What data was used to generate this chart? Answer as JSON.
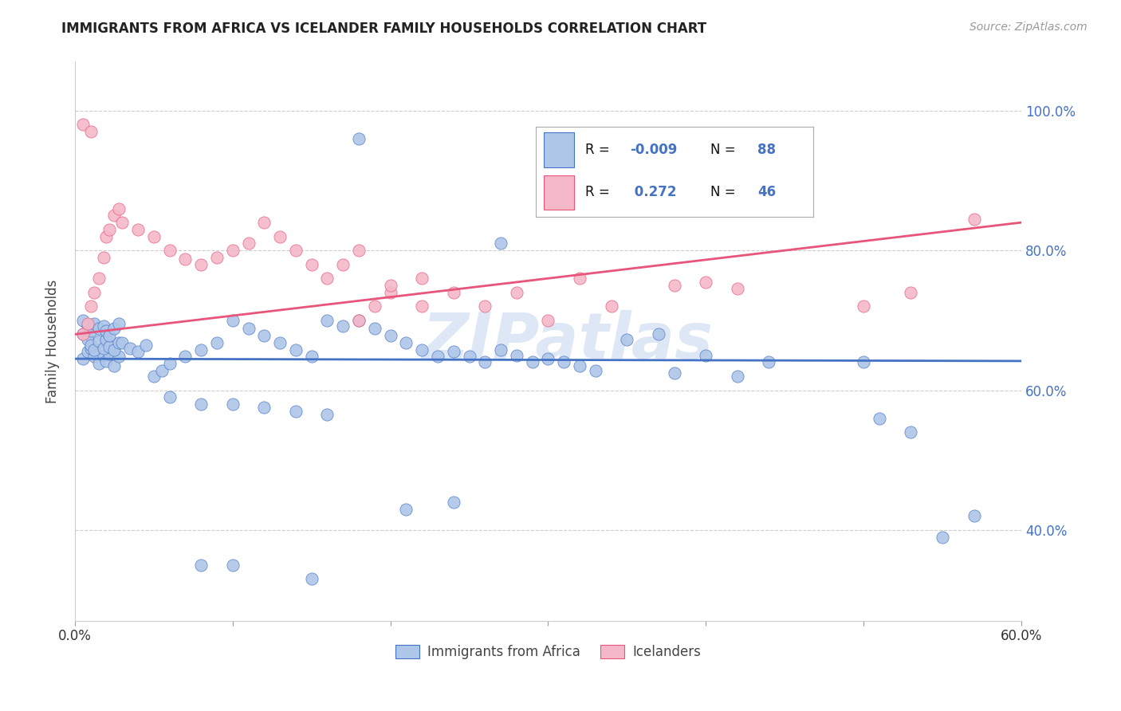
{
  "title": "IMMIGRANTS FROM AFRICA VS ICELANDER FAMILY HOUSEHOLDS CORRELATION CHART",
  "source": "Source: ZipAtlas.com",
  "ylabel": "Family Households",
  "legend_labels": [
    "Immigrants from Africa",
    "Icelanders"
  ],
  "R_africa": -0.009,
  "N_africa": 88,
  "R_iceland": 0.272,
  "N_iceland": 46,
  "color_africa": "#aec6e8",
  "color_iceland": "#f4b8c8",
  "line_color_africa": "#4472c4",
  "line_color_iceland": "#e8547a",
  "watermark": "ZIPatlas",
  "watermark_color": "#c8d8f0",
  "xmin": 0.0,
  "xmax": 0.6,
  "ymin": 0.27,
  "ymax": 1.07,
  "ytick_vals": [
    0.4,
    0.6,
    0.8,
    1.0
  ],
  "ytick_labels": [
    "40.0%",
    "60.0%",
    "80.0%",
    "100.0%"
  ],
  "africa_x": [
    0.005,
    0.008,
    0.01,
    0.012,
    0.015,
    0.018,
    0.02,
    0.022,
    0.025,
    0.028,
    0.005,
    0.008,
    0.01,
    0.012,
    0.015,
    0.018,
    0.02,
    0.022,
    0.025,
    0.028,
    0.005,
    0.008,
    0.01,
    0.012,
    0.015,
    0.018,
    0.02,
    0.022,
    0.025,
    0.028,
    0.03,
    0.035,
    0.04,
    0.045,
    0.05,
    0.055,
    0.06,
    0.07,
    0.08,
    0.09,
    0.1,
    0.11,
    0.12,
    0.13,
    0.14,
    0.15,
    0.16,
    0.17,
    0.18,
    0.19,
    0.2,
    0.21,
    0.22,
    0.23,
    0.24,
    0.25,
    0.26,
    0.27,
    0.28,
    0.29,
    0.3,
    0.31,
    0.32,
    0.33,
    0.35,
    0.37,
    0.38,
    0.4,
    0.42,
    0.44,
    0.18,
    0.5,
    0.51,
    0.53,
    0.55,
    0.57,
    0.21,
    0.24,
    0.27,
    0.15,
    0.06,
    0.08,
    0.1,
    0.12,
    0.14,
    0.16,
    0.08,
    0.1
  ],
  "africa_y": [
    0.645,
    0.655,
    0.66,
    0.648,
    0.638,
    0.65,
    0.642,
    0.652,
    0.635,
    0.648,
    0.68,
    0.672,
    0.665,
    0.658,
    0.67,
    0.66,
    0.672,
    0.662,
    0.658,
    0.668,
    0.7,
    0.692,
    0.685,
    0.695,
    0.688,
    0.692,
    0.685,
    0.678,
    0.688,
    0.695,
    0.668,
    0.66,
    0.655,
    0.665,
    0.62,
    0.628,
    0.638,
    0.648,
    0.658,
    0.668,
    0.7,
    0.688,
    0.678,
    0.668,
    0.658,
    0.648,
    0.7,
    0.692,
    0.7,
    0.688,
    0.678,
    0.668,
    0.658,
    0.648,
    0.655,
    0.648,
    0.64,
    0.658,
    0.65,
    0.64,
    0.645,
    0.64,
    0.635,
    0.628,
    0.672,
    0.68,
    0.625,
    0.65,
    0.62,
    0.64,
    0.96,
    0.64,
    0.56,
    0.54,
    0.39,
    0.42,
    0.43,
    0.44,
    0.81,
    0.33,
    0.59,
    0.58,
    0.58,
    0.575,
    0.57,
    0.565,
    0.35,
    0.35
  ],
  "iceland_x": [
    0.005,
    0.008,
    0.01,
    0.012,
    0.015,
    0.018,
    0.02,
    0.022,
    0.025,
    0.028,
    0.03,
    0.04,
    0.05,
    0.06,
    0.07,
    0.08,
    0.09,
    0.1,
    0.11,
    0.12,
    0.13,
    0.14,
    0.15,
    0.16,
    0.17,
    0.18,
    0.19,
    0.2,
    0.22,
    0.24,
    0.26,
    0.28,
    0.3,
    0.32,
    0.34,
    0.18,
    0.2,
    0.22,
    0.38,
    0.4,
    0.42,
    0.5,
    0.53,
    0.57,
    0.005,
    0.01
  ],
  "iceland_y": [
    0.68,
    0.695,
    0.72,
    0.74,
    0.76,
    0.79,
    0.82,
    0.83,
    0.85,
    0.86,
    0.84,
    0.83,
    0.82,
    0.8,
    0.788,
    0.78,
    0.79,
    0.8,
    0.81,
    0.84,
    0.82,
    0.8,
    0.78,
    0.76,
    0.78,
    0.8,
    0.72,
    0.74,
    0.72,
    0.74,
    0.72,
    0.74,
    0.7,
    0.76,
    0.72,
    0.7,
    0.75,
    0.76,
    0.75,
    0.755,
    0.745,
    0.72,
    0.74,
    0.845,
    0.98,
    0.97
  ]
}
